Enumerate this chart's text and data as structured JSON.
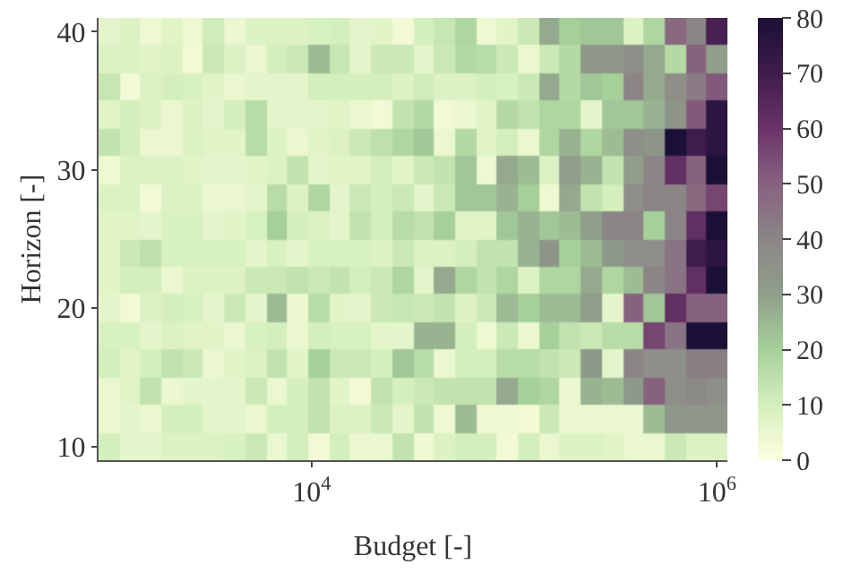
{
  "chart_data": {
    "type": "heatmap",
    "xlabel": "Budget [-]",
    "ylabel": "Horizon [-]",
    "x": [
      1000,
      1270,
      1610,
      2040,
      2590,
      3290,
      4180,
      5300,
      6720,
      8530,
      10800,
      13700,
      17400,
      22100,
      28100,
      35600,
      45200,
      57400,
      72800,
      92400,
      117000,
      149000,
      189000,
      240000,
      304000,
      386000,
      489000,
      621000,
      788000,
      1000000
    ],
    "y": [
      40,
      38,
      36,
      34,
      32,
      30,
      28,
      26,
      24,
      22,
      20,
      18,
      16,
      14,
      12,
      10
    ],
    "log": "x",
    "xlim": [
      887,
      1127000
    ],
    "xticks": [
      {
        "value": 10000,
        "label": "10$^{4}$"
      },
      {
        "value": 1000000,
        "label": "10$^{6}$"
      }
    ],
    "ylim": [
      9,
      41
    ],
    "yticks": [
      10,
      20,
      30,
      40
    ],
    "clim": [
      0,
      80
    ],
    "cticks": [
      0,
      10,
      20,
      30,
      40,
      50,
      60,
      70,
      80
    ],
    "cells": [
      [
        6,
        8,
        4,
        7,
        4,
        11,
        5,
        8,
        8,
        8,
        9,
        10,
        6,
        7,
        3,
        10,
        13,
        18,
        4,
        7,
        12,
        28,
        20,
        22,
        22,
        8,
        18,
        48,
        40,
        68
      ],
      [
        8,
        8,
        7,
        8,
        3,
        12,
        8,
        5,
        10,
        12,
        24,
        13,
        6,
        12,
        12,
        6,
        12,
        17,
        16,
        12,
        5,
        12,
        17,
        33,
        33,
        36,
        28,
        17,
        50,
        30
      ],
      [
        13,
        3,
        8,
        10,
        9,
        7,
        5,
        6,
        6,
        6,
        10,
        10,
        10,
        10,
        8,
        11,
        8,
        8,
        10,
        9,
        12,
        28,
        17,
        22,
        20,
        40,
        28,
        36,
        43,
        52
      ],
      [
        7,
        10,
        8,
        5,
        8,
        6,
        10,
        16,
        6,
        6,
        6,
        7,
        5,
        3,
        14,
        17,
        3,
        5,
        7,
        17,
        14,
        18,
        18,
        6,
        22,
        22,
        26,
        34,
        52,
        75
      ],
      [
        14,
        10,
        5,
        5,
        8,
        7,
        7,
        16,
        8,
        5,
        7,
        8,
        12,
        15,
        18,
        22,
        5,
        17,
        7,
        10,
        5,
        18,
        26,
        18,
        24,
        36,
        34,
        80,
        70,
        75
      ],
      [
        4,
        8,
        8,
        8,
        7,
        6,
        6,
        7,
        8,
        14,
        6,
        7,
        7,
        10,
        7,
        12,
        14,
        22,
        4,
        28,
        24,
        8,
        30,
        26,
        14,
        30,
        40,
        62,
        50,
        80
      ],
      [
        8,
        8,
        3,
        8,
        8,
        5,
        5,
        6,
        16,
        8,
        18,
        6,
        12,
        10,
        12,
        6,
        12,
        22,
        22,
        26,
        20,
        4,
        28,
        14,
        10,
        36,
        40,
        40,
        48,
        56
      ],
      [
        7,
        7,
        6,
        9,
        9,
        6,
        7,
        9,
        20,
        10,
        8,
        6,
        14,
        10,
        16,
        14,
        20,
        7,
        7,
        22,
        26,
        22,
        24,
        30,
        40,
        40,
        20,
        40,
        62,
        80
      ],
      [
        7,
        12,
        15,
        9,
        9,
        9,
        9,
        6,
        9,
        6,
        9,
        9,
        9,
        8,
        12,
        8,
        8,
        10,
        14,
        14,
        26,
        34,
        20,
        24,
        32,
        36,
        36,
        45,
        70,
        75
      ],
      [
        7,
        10,
        10,
        5,
        8,
        8,
        8,
        12,
        12,
        14,
        12,
        14,
        10,
        12,
        18,
        6,
        28,
        18,
        14,
        18,
        8,
        18,
        18,
        28,
        18,
        24,
        40,
        45,
        62,
        80
      ],
      [
        6,
        3,
        8,
        10,
        9,
        6,
        12,
        6,
        24,
        5,
        16,
        7,
        6,
        12,
        13,
        12,
        14,
        8,
        12,
        24,
        20,
        24,
        24,
        30,
        6,
        50,
        22,
        62,
        50,
        50
      ],
      [
        9,
        9,
        6,
        8,
        7,
        7,
        5,
        9,
        10,
        5,
        10,
        9,
        9,
        6,
        6,
        26,
        26,
        10,
        4,
        12,
        5,
        20,
        14,
        12,
        16,
        16,
        56,
        45,
        80,
        80
      ],
      [
        10,
        7,
        10,
        14,
        12,
        5,
        7,
        8,
        14,
        7,
        20,
        12,
        12,
        10,
        22,
        16,
        5,
        10,
        10,
        16,
        16,
        14,
        12,
        32,
        6,
        40,
        36,
        36,
        42,
        42
      ],
      [
        5,
        7,
        14,
        5,
        6,
        6,
        6,
        12,
        5,
        10,
        14,
        7,
        3,
        14,
        10,
        12,
        14,
        14,
        14,
        28,
        20,
        18,
        5,
        26,
        24,
        32,
        50,
        36,
        38,
        36
      ],
      [
        5,
        6,
        5,
        10,
        10,
        6,
        6,
        5,
        10,
        10,
        14,
        8,
        8,
        12,
        6,
        14,
        4,
        24,
        4,
        4,
        3,
        12,
        5,
        5,
        5,
        5,
        24,
        33,
        33,
        33
      ],
      [
        10,
        6,
        6,
        8,
        8,
        8,
        9,
        12,
        5,
        10,
        3,
        10,
        5,
        5,
        14,
        4,
        8,
        10,
        10,
        3,
        10,
        5,
        8,
        8,
        7,
        5,
        5,
        12,
        8,
        8
      ]
    ]
  }
}
